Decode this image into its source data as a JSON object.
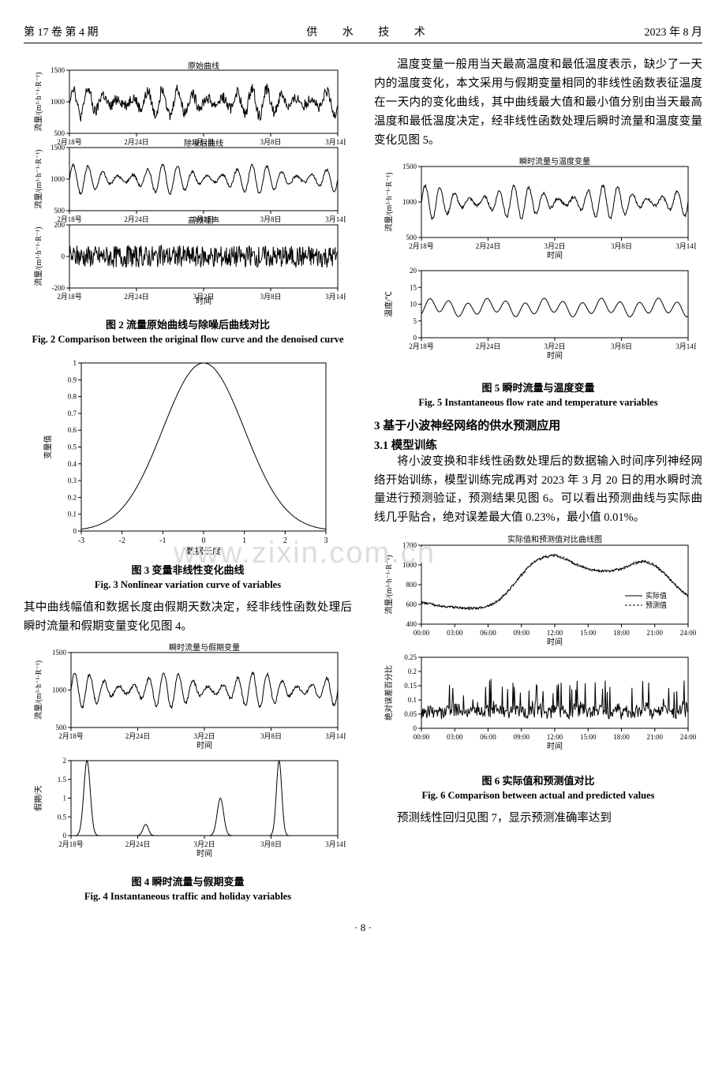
{
  "header": {
    "left": "第 17 卷   第 4 期",
    "center": "供 水 技 术",
    "right": "2023 年 8 月"
  },
  "fig2": {
    "panels": [
      {
        "title": "原始曲线",
        "ylim": [
          500,
          1500
        ],
        "yticks": [
          500,
          1000,
          1500
        ],
        "series_color": "#000000",
        "noise_amp": 90,
        "baseline": 1000,
        "cycle_amp": 230,
        "osc": 18
      },
      {
        "title": "除噪后曲线",
        "ylim": [
          500,
          1500
        ],
        "yticks": [
          500,
          1000,
          1500
        ],
        "series_color": "#000000",
        "noise_amp": 20,
        "baseline": 1000,
        "cycle_amp": 230,
        "osc": 18
      },
      {
        "title": "高频噪声",
        "ylim": [
          -200,
          200
        ],
        "yticks": [
          -200,
          0,
          200
        ],
        "series_color": "#000000",
        "noise_amp": 70,
        "baseline": 0,
        "cycle_amp": 0,
        "osc": 0
      }
    ],
    "xticks": [
      "2月18号",
      "2月24日",
      "3月2日",
      "3月8日",
      "3月14日"
    ],
    "xlabel": "时间",
    "ylabel": "流量/(m³·h⁻¹·R⁻¹)",
    "caption_cn": "图 2   流量原始曲线与除噪后曲线对比",
    "caption_en": "Fig. 2   Comparison between the original flow curve and the denoised curve"
  },
  "fig3": {
    "xlim": [
      -3,
      3
    ],
    "ylim": [
      0,
      1.0
    ],
    "xticks": [
      -3,
      -2,
      -1,
      0,
      1,
      2,
      3
    ],
    "yticks": [
      0,
      0.1,
      0.2,
      0.3,
      0.4,
      0.5,
      0.6,
      0.7,
      0.8,
      0.9,
      1.0
    ],
    "xlabel": "数据长度",
    "ylabel": "变量值",
    "series_color": "#000000",
    "sigma": 1.0,
    "caption_cn": "图 3   变量非线性变化曲线",
    "caption_en": "Fig. 3   Nonlinear variation curve of variables"
  },
  "col1_para": "其中曲线幅值和数据长度由假期天数决定，经非线性函数处理后瞬时流量和假期变量变化见图 4。",
  "fig4": {
    "panel1": {
      "title": "瞬时流量与假期变量",
      "ylim": [
        500,
        1500
      ],
      "yticks": [
        500,
        1000,
        1500
      ],
      "ylabel": "流量/(m³·h⁻¹·R⁻¹)",
      "baseline": 1000,
      "cycle_amp": 235,
      "osc": 18,
      "noise_amp": 20,
      "series_color": "#000000"
    },
    "panel2": {
      "ylim": [
        0,
        2.0
      ],
      "yticks": [
        0,
        0.5,
        1.0,
        1.5,
        2.0
      ],
      "ylabel": "假期/天",
      "peaks": [
        [
          0.06,
          2.0,
          0.012
        ],
        [
          0.28,
          0.3,
          0.01
        ],
        [
          0.56,
          1.0,
          0.012
        ],
        [
          0.78,
          2.0,
          0.01
        ]
      ],
      "series_color": "#000000"
    },
    "xticks": [
      "2月18号",
      "2月24日",
      "3月2日",
      "3月8日",
      "3月14日"
    ],
    "xlabel": "时间",
    "caption_cn": "图 4   瞬时流量与假期变量",
    "caption_en": "Fig. 4   Instantaneous traffic and holiday variables"
  },
  "col2_para1": "温度变量一般用当天最高温度和最低温度表示，缺少了一天内的温度变化，本文采用与假期变量相同的非线性函数表征温度在一天内的变化曲线，其中曲线最大值和最小值分别由当天最高温度和最低温度决定，经非线性函数处理后瞬时流量和温度变量变化见图 5。",
  "fig5": {
    "panel1": {
      "title": "瞬时流量与温度变量",
      "ylim": [
        500,
        1500
      ],
      "yticks": [
        500,
        1000,
        1500
      ],
      "ylabel": "流量/(m³·h⁻¹·R⁻¹)",
      "baseline": 1000,
      "cycle_amp": 235,
      "osc": 18,
      "noise_amp": 20,
      "series_color": "#000000"
    },
    "panel2": {
      "ylim": [
        0,
        20
      ],
      "yticks": [
        0,
        5,
        10,
        15,
        20
      ],
      "ylabel": "温度/℃",
      "base": 7,
      "amp": 4,
      "osc": 14,
      "series_color": "#000000"
    },
    "xticks": [
      "2月18号",
      "2月24日",
      "3月2日",
      "3月8日",
      "3月14日"
    ],
    "xlabel": "时间",
    "caption_cn": "图 5   瞬时流量与温度变量",
    "caption_en": "Fig. 5   Instantaneous flow rate and temperature variables"
  },
  "section3": {
    "head": "3  基于小波神经网络的供水预测应用",
    "sub": "3.1  模型训练"
  },
  "col2_para2": "将小波变换和非线性函数处理后的数据输入时间序列神经网络开始训练，模型训练完成再对 2023 年 3 月 20 日的用水瞬时流量进行预测验证，预测结果见图 6。可以看出预测曲线与实际曲线几乎贴合，绝对误差最大值 0.23%，最小值 0.01%。",
  "fig6": {
    "panel1": {
      "title": "实际值和预测值对比曲线图",
      "ylim": [
        400,
        1200
      ],
      "yticks": [
        400,
        600,
        800,
        1000,
        1200
      ],
      "ylabel": "流量/(m³·h⁻¹·R⁻¹)",
      "legend": [
        "实际值",
        "预测值"
      ],
      "legend_styles": [
        "solid",
        "dash"
      ],
      "profile": [
        620,
        600,
        580,
        570,
        560,
        560,
        580,
        640,
        760,
        900,
        1020,
        1080,
        1100,
        1060,
        1000,
        960,
        940,
        940,
        960,
        1010,
        1040,
        1000,
        900,
        780,
        680
      ],
      "series_color": "#000000"
    },
    "panel2": {
      "ylim": [
        0,
        0.25
      ],
      "yticks": [
        0,
        0.05,
        0.1,
        0.15,
        0.2,
        0.25
      ],
      "ylabel": "绝对误差百分比",
      "series_color": "#000000"
    },
    "xticks": [
      "00:00",
      "03:00",
      "06:00",
      "09:00",
      "12:00",
      "15:00",
      "18:00",
      "21:00",
      "24:00"
    ],
    "xlabel": "时间",
    "caption_cn": "图 6   实际值和预测值对比",
    "caption_en": "Fig. 6   Comparison between actual and predicted values"
  },
  "col2_para3": "预测线性回归见图 7，显示预测准确率达到",
  "page_num": "· 8 ·",
  "watermark": "www.zixin.com.cn"
}
